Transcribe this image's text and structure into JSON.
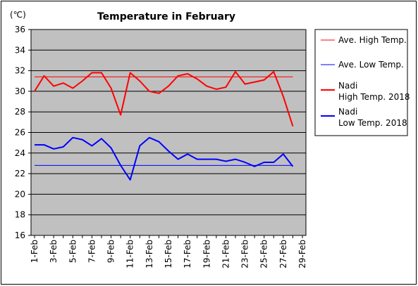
{
  "chart_data": {
    "type": "line",
    "title": "Temperature in February",
    "unit_label": "(℃)",
    "ylim": [
      16,
      36
    ],
    "ytick_step": 2,
    "x_tick_labels": [
      "1-Feb",
      "3-Feb",
      "5-Feb",
      "7-Feb",
      "9-Feb",
      "11-Feb",
      "13-Feb",
      "15-Feb",
      "17-Feb",
      "19-Feb",
      "21-Feb",
      "23-Feb",
      "25-Feb",
      "27-Feb",
      "29-Feb"
    ],
    "day_range": [
      1,
      29
    ],
    "plot_background": "#c0c0c0",
    "grid": true,
    "legend_position": "right",
    "series": [
      {
        "name": "Ave. High Temp.",
        "label_lines": [
          "Ave. High Temp."
        ],
        "color": "#ff0000",
        "width": 1,
        "constant": 31.4
      },
      {
        "name": "Ave. Low Temp.",
        "label_lines": [
          "Ave. Low Temp."
        ],
        "color": "#0000ff",
        "width": 1,
        "constant": 22.8
      },
      {
        "name": "Nadi High Temp. 2018",
        "label_lines": [
          "Nadi",
          "High Temp. 2018"
        ],
        "color": "#ff0000",
        "width": 2,
        "values": [
          30.0,
          31.5,
          30.5,
          30.8,
          30.3,
          31.0,
          31.8,
          31.8,
          30.3,
          27.7,
          31.8,
          31.0,
          30.0,
          29.8,
          30.5,
          31.5,
          31.7,
          31.2,
          30.5,
          30.2,
          30.4,
          31.9,
          30.7,
          30.9,
          31.1,
          31.9,
          29.5,
          26.6
        ]
      },
      {
        "name": "Nadi Low Temp. 2018",
        "label_lines": [
          "Nadi",
          "Low Temp. 2018"
        ],
        "color": "#0000ff",
        "width": 2,
        "values": [
          24.8,
          24.8,
          24.4,
          24.6,
          25.5,
          25.3,
          24.7,
          25.4,
          24.5,
          22.8,
          21.4,
          24.7,
          25.5,
          25.1,
          24.2,
          23.4,
          23.9,
          23.4,
          23.4,
          23.4,
          23.2,
          23.4,
          23.1,
          22.7,
          23.1,
          23.1,
          23.9,
          22.7
        ]
      }
    ]
  }
}
